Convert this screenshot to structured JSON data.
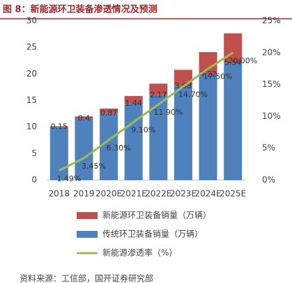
{
  "chart_data": {
    "type": "bar",
    "title": "图 8：新能源环卫装备渗透情况及预测",
    "categories": [
      "2018",
      "2019",
      "2020E",
      "2021E",
      "2022E",
      "2023E",
      "2024E",
      "2025E"
    ],
    "series": [
      {
        "name": "新能源环卫装备销量（万辆）",
        "color": "#c0504d",
        "values": [
          0.15,
          0.4,
          0.87,
          1.44,
          2.17,
          3.08,
          4.22,
          5.54
        ]
      },
      {
        "name": "传统环卫装备销量（万辆）",
        "color": "#4f81bd",
        "values": [
          10.0,
          11.6,
          12.6,
          14.4,
          16.0,
          17.7,
          19.9,
          22.1
        ]
      },
      {
        "name": "新能源渗透率（%）",
        "color": "#9bbb59",
        "type": "line",
        "axis": "y2",
        "values": [
          1.49,
          3.45,
          6.3,
          9.1,
          11.9,
          14.7,
          17.5,
          20.0
        ],
        "value_labels": [
          "1.49%",
          "3.45%",
          "6.30%",
          "9.10%",
          "11.90%",
          "14.70%",
          "17.50%",
          "20.00%"
        ]
      }
    ],
    "ylim": [
      0,
      30
    ],
    "yticks": [
      0,
      5,
      10,
      15,
      20,
      25,
      30
    ],
    "y2lim": [
      0,
      25
    ],
    "y2ticks": [
      {
        "value": 0,
        "label": "0%"
      },
      {
        "value": 5,
        "label": "5%"
      },
      {
        "value": 10,
        "label": "10%"
      },
      {
        "value": 15,
        "label": "15%"
      },
      {
        "value": 20,
        "label": "20%"
      },
      {
        "value": 25,
        "label": "25%"
      }
    ],
    "source": "资料来源：工信部，国开证券研究部"
  }
}
